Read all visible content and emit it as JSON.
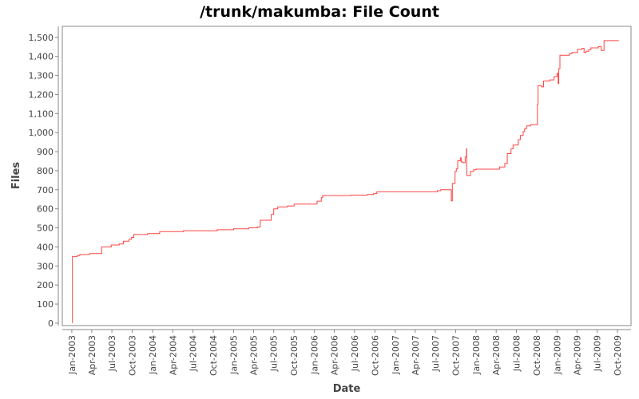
{
  "chart_data": {
    "type": "line",
    "title": "/trunk/makumba: File Count",
    "xlabel": "Date",
    "ylabel": "Files",
    "xlim": [
      "2002-11-19",
      "2009-12-01"
    ],
    "ylim": [
      -13,
      1558
    ],
    "grid": false,
    "legend": "none",
    "line_color": "#ff4444",
    "yticks": [
      0,
      100,
      200,
      300,
      400,
      500,
      600,
      700,
      800,
      900,
      1000,
      1100,
      1200,
      1300,
      1400,
      1500
    ],
    "ytick_labels": [
      "0",
      "100",
      "200",
      "300",
      "400",
      "500",
      "600",
      "700",
      "800",
      "900",
      "1,000",
      "1,100",
      "1,200",
      "1,300",
      "1,400",
      "1,500"
    ],
    "xticks": [
      "2003-01-01",
      "2003-04-01",
      "2003-07-01",
      "2003-10-01",
      "2004-01-01",
      "2004-04-01",
      "2004-07-01",
      "2004-10-01",
      "2005-01-01",
      "2005-04-01",
      "2005-07-01",
      "2005-10-01",
      "2006-01-01",
      "2006-04-01",
      "2006-07-01",
      "2006-10-01",
      "2007-01-01",
      "2007-04-01",
      "2007-07-01",
      "2007-10-01",
      "2008-01-01",
      "2008-04-01",
      "2008-07-01",
      "2008-10-01",
      "2009-01-01",
      "2009-04-01",
      "2009-07-01",
      "2009-10-01"
    ],
    "xtick_labels": [
      "Jan-2003",
      "Apr-2003",
      "Jul-2003",
      "Oct-2003",
      "Jan-2004",
      "Apr-2004",
      "Jul-2004",
      "Oct-2004",
      "Jan-2005",
      "Apr-2005",
      "Jul-2005",
      "Oct-2005",
      "Jan-2006",
      "Apr-2006",
      "Jul-2006",
      "Oct-2006",
      "Jan-2007",
      "Apr-2007",
      "Jul-2007",
      "Oct-2007",
      "Jan-2008",
      "Apr-2008",
      "Jul-2008",
      "Oct-2008",
      "Jan-2009",
      "Apr-2009",
      "Jul-2009",
      "Oct-2009"
    ],
    "points": [
      [
        "2003-01-04",
        0
      ],
      [
        "2003-01-04",
        350
      ],
      [
        "2003-01-26",
        355
      ],
      [
        "2003-02-06",
        360
      ],
      [
        "2003-03-22",
        365
      ],
      [
        "2003-05-16",
        400
      ],
      [
        "2003-06-28",
        410
      ],
      [
        "2003-08-03",
        415
      ],
      [
        "2003-08-22",
        430
      ],
      [
        "2003-09-16",
        440
      ],
      [
        "2003-09-28",
        450
      ],
      [
        "2003-10-08",
        465
      ],
      [
        "2003-12-09",
        470
      ],
      [
        "2004-02-02",
        480
      ],
      [
        "2004-05-19",
        485
      ],
      [
        "2004-10-19",
        490
      ],
      [
        "2005-01-01",
        495
      ],
      [
        "2005-03-10",
        500
      ],
      [
        "2005-04-19",
        505
      ],
      [
        "2005-05-01",
        540
      ],
      [
        "2005-06-20",
        570
      ],
      [
        "2005-07-01",
        600
      ],
      [
        "2005-07-19",
        610
      ],
      [
        "2005-09-01",
        615
      ],
      [
        "2005-10-01",
        625
      ],
      [
        "2006-01-13",
        640
      ],
      [
        "2006-02-01",
        660
      ],
      [
        "2006-02-07",
        670
      ],
      [
        "2006-06-15",
        672
      ],
      [
        "2006-08-28",
        675
      ],
      [
        "2006-09-25",
        680
      ],
      [
        "2006-10-10",
        690
      ],
      [
        "2007-07-10",
        695
      ],
      [
        "2007-07-25",
        700
      ],
      [
        "2007-09-11",
        642
      ],
      [
        "2007-09-16",
        733
      ],
      [
        "2007-09-28",
        796
      ],
      [
        "2007-10-04",
        810
      ],
      [
        "2007-10-10",
        852
      ],
      [
        "2007-10-22",
        867
      ],
      [
        "2007-10-26",
        846
      ],
      [
        "2007-11-03",
        842
      ],
      [
        "2007-11-13",
        872
      ],
      [
        "2007-11-19",
        915
      ],
      [
        "2007-11-20",
        775
      ],
      [
        "2007-12-07",
        796
      ],
      [
        "2007-12-21",
        805
      ],
      [
        "2008-01-01",
        808
      ],
      [
        "2008-04-16",
        820
      ],
      [
        "2008-05-10",
        838
      ],
      [
        "2008-05-21",
        890
      ],
      [
        "2008-06-07",
        915
      ],
      [
        "2008-06-16",
        935
      ],
      [
        "2008-07-10",
        963
      ],
      [
        "2008-07-19",
        985
      ],
      [
        "2008-08-01",
        1005
      ],
      [
        "2008-08-07",
        1020
      ],
      [
        "2008-08-16",
        1035
      ],
      [
        "2008-09-03",
        1042
      ],
      [
        "2008-10-04",
        1148
      ],
      [
        "2008-10-07",
        1247
      ],
      [
        "2008-10-22",
        1240
      ],
      [
        "2008-11-01",
        1271
      ],
      [
        "2008-11-28",
        1277
      ],
      [
        "2008-12-18",
        1294
      ],
      [
        "2009-01-01",
        1312
      ],
      [
        "2009-01-06",
        1257
      ],
      [
        "2009-01-09",
        1336
      ],
      [
        "2009-01-14",
        1406
      ],
      [
        "2009-02-25",
        1414
      ],
      [
        "2009-03-09",
        1420
      ],
      [
        "2009-04-03",
        1437
      ],
      [
        "2009-04-24",
        1443
      ],
      [
        "2009-05-03",
        1421
      ],
      [
        "2009-05-12",
        1427
      ],
      [
        "2009-05-24",
        1435
      ],
      [
        "2009-06-03",
        1445
      ],
      [
        "2009-07-06",
        1451
      ],
      [
        "2009-07-19",
        1431
      ],
      [
        "2009-08-01",
        1483
      ],
      [
        "2009-10-07",
        1483
      ]
    ]
  }
}
